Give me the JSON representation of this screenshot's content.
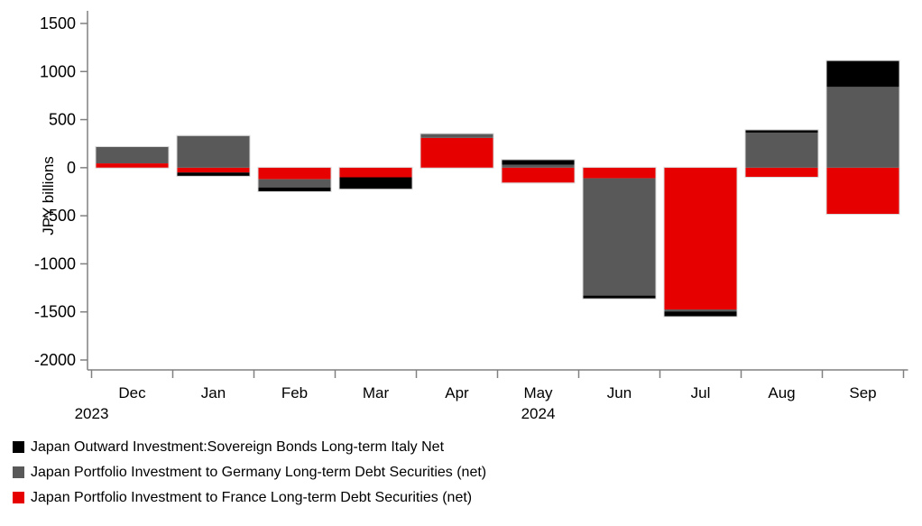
{
  "chart_data": {
    "type": "bar",
    "stacked": true,
    "title": "",
    "xlabel": "",
    "ylabel": "JPY billions",
    "ylim": [
      -2000,
      1500
    ],
    "yticks": [
      1500,
      1000,
      500,
      0,
      -500,
      -1000,
      -1500,
      -2000
    ],
    "grid": false,
    "legend_position": "bottom-left",
    "categories": [
      "Dec",
      "Jan",
      "Feb",
      "Mar",
      "Apr",
      "May",
      "Jun",
      "Jul",
      "Aug",
      "Sep"
    ],
    "year_labels": [
      {
        "text": "2023",
        "under": "Dec",
        "dx": -45
      },
      {
        "text": "2024",
        "under": "May",
        "dx": 0
      }
    ],
    "stack_order_from_axis": [
      "France",
      "Germany",
      "Italy"
    ],
    "series": [
      {
        "name": "Japan Outward Investment:Sovereign Bonds Long-term Italy Net",
        "color": "#000000",
        "values": [
          0,
          -35,
          -40,
          -120,
          0,
          50,
          -30,
          -50,
          25,
          270
        ]
      },
      {
        "name": "Japan Portfolio Investment to Germany Long-term Debt Securities (net)",
        "color": "#595959",
        "values": [
          170,
          330,
          -85,
          0,
          40,
          30,
          -1220,
          -20,
          365,
          840
        ]
      },
      {
        "name": "Japan Portfolio Investment to France Long-term Debt Securities (net)",
        "color": "#e60000",
        "values": [
          45,
          -50,
          -120,
          -100,
          310,
          -155,
          -110,
          -1475,
          -95,
          -480
        ]
      }
    ]
  }
}
